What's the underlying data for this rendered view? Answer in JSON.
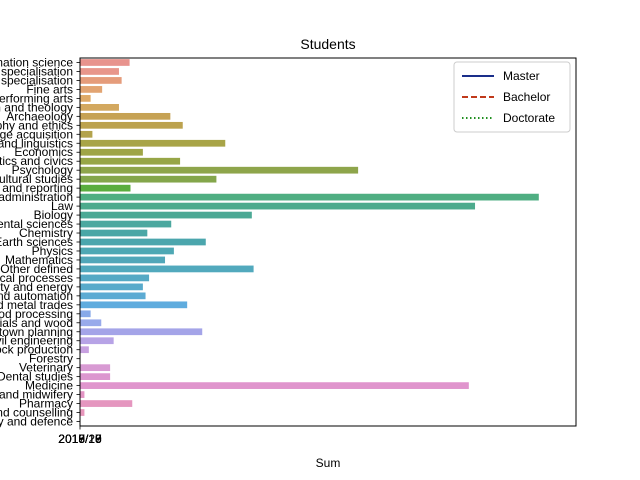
{
  "chart_data": {
    "type": "bar",
    "orientation": "horizontal",
    "title": "Students",
    "xlabel": "Sum",
    "ylabel": "",
    "xlim": [
      0,
      5600
    ],
    "x_tick_labels": [
      "2015/16",
      "2016/17",
      "2017/18",
      "2018/19",
      "2019/20"
    ],
    "categories": [
      "Information science",
      "Other specialisation",
      "Other specialisation",
      "Fine arts",
      "Performing arts",
      "Religion and theology",
      "Archaeology",
      "Philosophy and ethics",
      "Language acquisition",
      "Literature and linguistics",
      "Economics",
      "Politics and civics",
      "Psychology",
      "Cultural studies",
      "Journalism and reporting",
      "Business administration",
      "Law",
      "Biology",
      "Environmental sciences",
      "Chemistry",
      "Earth sciences",
      "Physics",
      "Mathematics",
      "Other defined",
      "Chemical processes",
      "Electricity and energy",
      "Electronics and automation",
      "Mechanics and metal trades",
      "Food processing",
      "Materials and wood",
      "Architecture and town planning",
      "Building and civil engineering",
      "Crop and livestock production",
      "Forestry",
      "Veterinary",
      "Dental studies",
      "Medicine",
      "Nursing and midwifery",
      "Pharmacy",
      "Care and counselling",
      "Military and defence"
    ],
    "values": [
      560,
      440,
      470,
      250,
      120,
      440,
      1020,
      1160,
      140,
      1640,
      710,
      1130,
      3140,
      1540,
      570,
      5180,
      4460,
      1940,
      1030,
      760,
      1420,
      1060,
      960,
      1960,
      780,
      710,
      740,
      1210,
      120,
      240,
      1380,
      380,
      100,
      0,
      340,
      340,
      4390,
      50,
      590,
      50,
      0
    ],
    "colors": [
      "#e8938d",
      "#e8968b",
      "#e59c7b",
      "#e2a472",
      "#dfaa67",
      "#d3a85f",
      "#c6a254",
      "#bca24e",
      "#b3a34c",
      "#a8a447",
      "#9fa546",
      "#97a647",
      "#8ea54b",
      "#84a64b",
      "#5aad3e",
      "#4fae82",
      "#4dab8d",
      "#4ca995",
      "#4ca89f",
      "#4aa7a6",
      "#4ba6ad",
      "#4ea8b4",
      "#51a7b9",
      "#52a9bd",
      "#55a9c5",
      "#58aacb",
      "#5cabd3",
      "#5facde",
      "#87a9e9",
      "#98aaeb",
      "#a4a4e8",
      "#b7a3e6",
      "#c7a0e0",
      "#d29cd8",
      "#d89ad3",
      "#dc97cf",
      "#e095cd",
      "#e394c4",
      "#e596bf",
      "#e796bb",
      "#e895b6"
    ],
    "legend": {
      "placement": "top-right",
      "entries": [
        {
          "label": "Master",
          "color": "#1a2e8a",
          "style": "solid"
        },
        {
          "label": "Bachelor",
          "color": "#c0391b",
          "style": "dashed"
        },
        {
          "label": "Doctorate",
          "color": "#1f8f1f",
          "style": "dotted"
        }
      ]
    }
  }
}
